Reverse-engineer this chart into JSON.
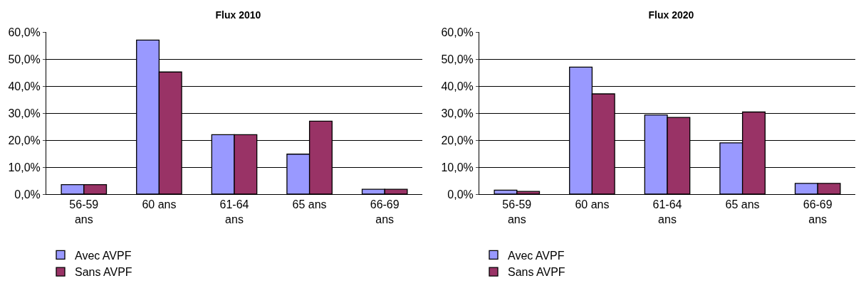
{
  "chart_data": [
    {
      "type": "bar",
      "title": "Flux 2010",
      "categories": [
        "56-59 ans",
        "60 ans",
        "61-64 ans",
        "65 ans",
        "66-69 ans"
      ],
      "series": [
        {
          "name": "Avec AVPF",
          "color": "#9999ff",
          "values": [
            3.5,
            57,
            22,
            14.8,
            1.8
          ]
        },
        {
          "name": "Sans AVPF",
          "color": "#993366",
          "values": [
            3.5,
            45.2,
            22,
            27,
            1.8
          ]
        }
      ],
      "ylim": [
        0,
        60
      ],
      "yticks": [
        {
          "value": 0,
          "label": "0,0%"
        },
        {
          "value": 10,
          "label": "10,0%"
        },
        {
          "value": 20,
          "label": "20,0%"
        },
        {
          "value": 30,
          "label": "30,0%"
        },
        {
          "value": 40,
          "label": "40,0%"
        },
        {
          "value": 50,
          "label": "50,0%"
        },
        {
          "value": 60,
          "label": "60,0%"
        }
      ],
      "grid": "y",
      "legend": "bottom"
    },
    {
      "type": "bar",
      "title": "Flux 2020",
      "categories": [
        "56-59 ans",
        "60 ans",
        "61-64 ans",
        "65 ans",
        "66-69 ans"
      ],
      "series": [
        {
          "name": "Avec AVPF",
          "color": "#9999ff",
          "values": [
            1.5,
            47,
            29.3,
            19,
            4
          ]
        },
        {
          "name": "Sans AVPF",
          "color": "#993366",
          "values": [
            1,
            37.1,
            28.4,
            30.4,
            4
          ]
        }
      ],
      "ylim": [
        0,
        60
      ],
      "yticks": [
        {
          "value": 0,
          "label": "0,0%"
        },
        {
          "value": 10,
          "label": "10,0%"
        },
        {
          "value": 20,
          "label": "20,0%"
        },
        {
          "value": 30,
          "label": "30,0%"
        },
        {
          "value": 40,
          "label": "40,0%"
        },
        {
          "value": 50,
          "label": "50,0%"
        },
        {
          "value": 60,
          "label": "60,0%"
        }
      ],
      "grid": "y",
      "legend": "bottom"
    }
  ]
}
